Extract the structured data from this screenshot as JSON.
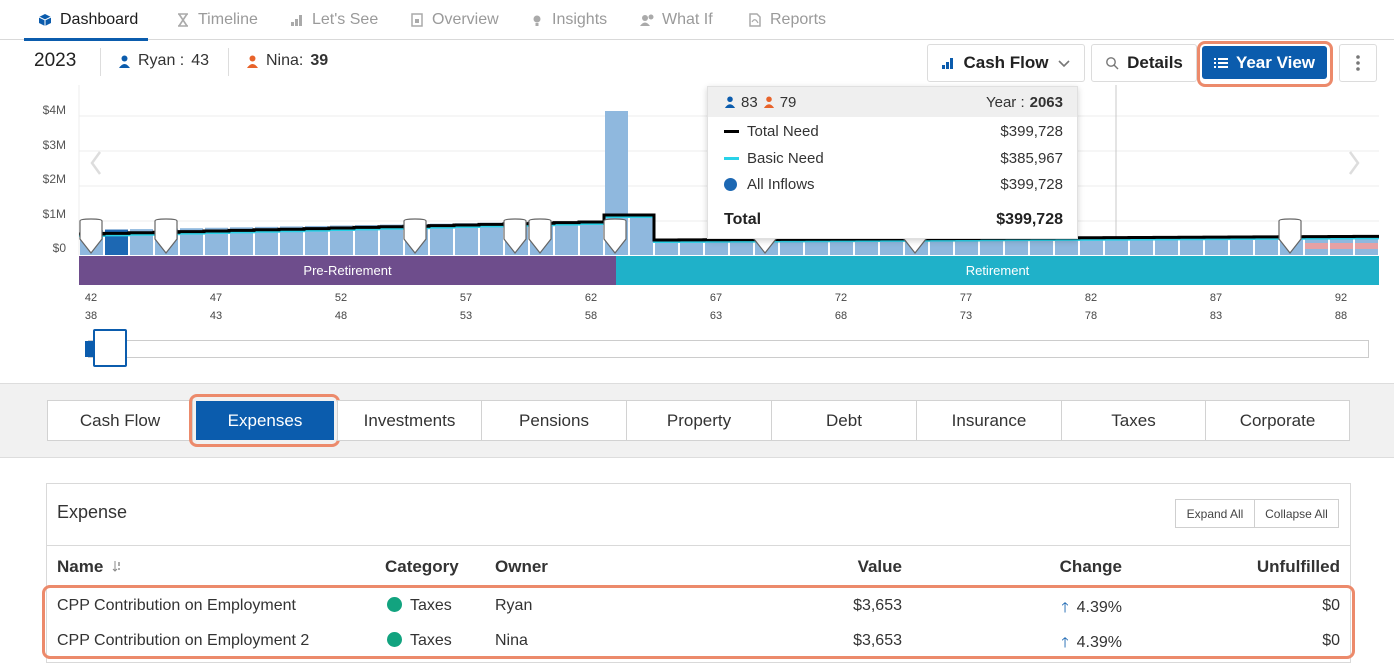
{
  "nav": {
    "tabs": [
      {
        "label": "Dashboard",
        "icon": "cube-icon"
      },
      {
        "label": "Timeline",
        "icon": "hourglass-icon"
      },
      {
        "label": "Let's See",
        "icon": "bar-chart-icon"
      },
      {
        "label": "Overview",
        "icon": "document-icon"
      },
      {
        "label": "Insights",
        "icon": "lightbulb-icon"
      },
      {
        "label": "What If",
        "icon": "people-question-icon"
      },
      {
        "label": "Reports",
        "icon": "pdf-icon"
      }
    ]
  },
  "header": {
    "year": "2023",
    "person1": {
      "name": "Ryan :",
      "age": "43"
    },
    "person2": {
      "name": "Nina:",
      "age": "39"
    },
    "cashflow_label": "Cash Flow",
    "details_label": "Details",
    "yearview_label": "Year View"
  },
  "chart": {
    "yaxis": [
      "$4M",
      "$3M",
      "$2M",
      "$1M",
      "$0"
    ],
    "phase_pre": "Pre-Retirement",
    "phase_ret": "Retirement",
    "ages_ryan": [
      "42",
      "47",
      "52",
      "57",
      "62",
      "67",
      "72",
      "77",
      "82",
      "87",
      "92"
    ],
    "ages_nina": [
      "38",
      "43",
      "48",
      "53",
      "58",
      "63",
      "68",
      "73",
      "78",
      "83",
      "88"
    ],
    "colors": {
      "bar": "#8fb8de",
      "bar_current": "#1d68b3",
      "bar_deficit": "#e6a1a4",
      "pre": "#6e4d8c",
      "ret": "#1fb1c9"
    }
  },
  "tooltip": {
    "age1": "83",
    "age2": "79",
    "year_label": "Year :",
    "year": "2063",
    "rows": [
      {
        "label": "Total Need",
        "value": "$399,728"
      },
      {
        "label": "Basic Need",
        "value": "$385,967"
      },
      {
        "label": "All Inflows",
        "value": "$399,728"
      }
    ],
    "total_label": "Total",
    "total_value": "$399,728"
  },
  "sections": [
    "Cash Flow",
    "Expenses",
    "Investments",
    "Pensions",
    "Property",
    "Debt",
    "Insurance",
    "Taxes",
    "Corporate"
  ],
  "expense": {
    "title": "Expense",
    "expand_all": "Expand All",
    "collapse_all": "Collapse All",
    "columns": {
      "name": "Name",
      "category": "Category",
      "owner": "Owner",
      "value": "Value",
      "change": "Change",
      "unfulfilled": "Unfulfilled"
    },
    "rows": [
      {
        "name": "CPP Contribution on Employment",
        "category": "Taxes",
        "owner": "Ryan",
        "value": "$3,653",
        "change": "4.39%",
        "unfulfilled": "$0"
      },
      {
        "name": "CPP Contribution on Employment 2",
        "category": "Taxes",
        "owner": "Nina",
        "value": "$3,653",
        "change": "4.39%",
        "unfulfilled": "$0"
      }
    ]
  }
}
